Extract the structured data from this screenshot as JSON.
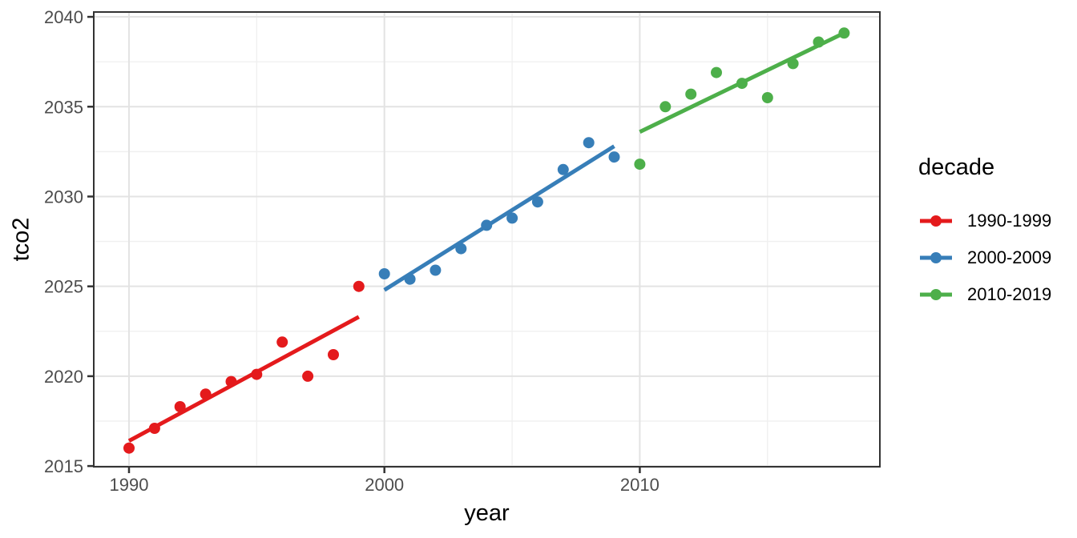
{
  "chart_data": {
    "type": "scatter",
    "title": "",
    "xlabel": "year",
    "ylabel": "tco2",
    "grid": "major+minor",
    "legend": {
      "title": "decade",
      "position": "right",
      "entries": [
        "1990-1999",
        "2000-2009",
        "2010-2019"
      ]
    },
    "axes": {
      "x": {
        "range": [
          1988.62,
          2019.4
        ],
        "major_ticks": [
          1990,
          2000,
          2010
        ],
        "minor_gridlines": [
          1995,
          2005,
          2015
        ]
      },
      "y": {
        "range": [
          2014.96,
          2040.27
        ],
        "major_ticks": [
          2015,
          2020,
          2025,
          2030,
          2035,
          2040
        ],
        "minor_gridlines": [
          2017.5,
          2022.5,
          2027.5,
          2032.5,
          2037.5
        ]
      }
    },
    "series": [
      {
        "name": "1990-1999",
        "color": "#E41A1C",
        "x": [
          1990,
          1991,
          1992,
          1993,
          1994,
          1995,
          1996,
          1997,
          1998,
          1999
        ],
        "y": [
          2016.0,
          2017.1,
          2018.3,
          2019.0,
          2019.7,
          2020.1,
          2021.9,
          2020.0,
          2021.2,
          2025.0
        ],
        "trend": {
          "x": [
            1990,
            1999
          ],
          "y": [
            2016.4,
            2023.3
          ]
        }
      },
      {
        "name": "2000-2009",
        "color": "#377EB8",
        "x": [
          2000,
          2001,
          2002,
          2003,
          2004,
          2005,
          2006,
          2007,
          2008,
          2009
        ],
        "y": [
          2025.7,
          2025.4,
          2025.9,
          2027.1,
          2028.4,
          2028.8,
          2029.7,
          2031.5,
          2033.0,
          2032.2
        ],
        "trend": {
          "x": [
            2000,
            2009
          ],
          "y": [
            2024.8,
            2032.8
          ]
        }
      },
      {
        "name": "2010-2019",
        "color": "#4DAF4A",
        "x": [
          2010,
          2011,
          2012,
          2013,
          2014,
          2015,
          2016,
          2017,
          2018
        ],
        "y": [
          2031.8,
          2035.0,
          2035.7,
          2036.9,
          2036.3,
          2035.5,
          2037.4,
          2038.6,
          2039.1
        ],
        "trend": {
          "x": [
            2010,
            2018
          ],
          "y": [
            2033.6,
            2039.1
          ]
        }
      }
    ]
  }
}
